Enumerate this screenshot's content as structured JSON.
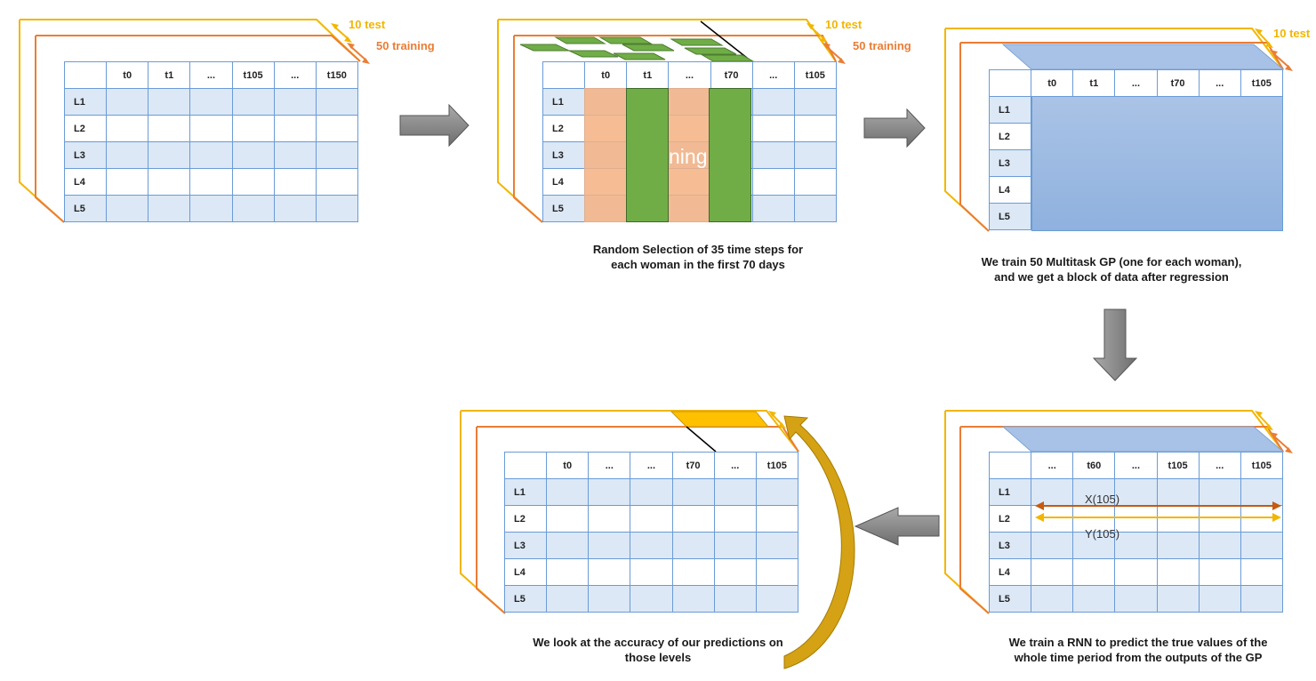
{
  "colors": {
    "yellow": "#f2b600",
    "orange": "#ea7d35",
    "blue_border": "#6a9bd6",
    "green": "#70ad47",
    "salmon": "#f4b183",
    "dark_red": "#c55a11"
  },
  "depth_labels": {
    "test": "10 test",
    "training": "50 training"
  },
  "row_labels": [
    "L1",
    "L2",
    "L3",
    "L4",
    "L5"
  ],
  "tables": [
    {
      "headers": [
        "t0",
        "t1",
        "...",
        "t105",
        "...",
        "t150"
      ]
    },
    {
      "headers": [
        "t0",
        "t1",
        "...",
        "t70",
        "...",
        "t105"
      ]
    },
    {
      "headers": [
        "t0",
        "t1",
        "...",
        "t70",
        "...",
        "t105"
      ]
    },
    {
      "headers": [
        "...",
        "t60",
        "...",
        "t105",
        "...",
        "t105"
      ]
    },
    {
      "headers": [
        "t0",
        "...",
        "...",
        "t70",
        "...",
        "t105"
      ]
    }
  ],
  "captions": {
    "step2": [
      "Random Selection of 35 time steps for",
      "each woman in the first 70 days"
    ],
    "step3": [
      "We train 50 Multitask GP (one for each woman),",
      "and we get a block of data after regression"
    ],
    "step4": [
      "We train a RNN to predict the true values of the",
      "whole time period from the outputs of the GP"
    ],
    "step5": [
      "We look at the accuracy of our predictions on",
      "those levels"
    ]
  },
  "overlay_partial_text": "ning",
  "series_labels": {
    "x": "X(105)",
    "y": "Y(105)"
  }
}
